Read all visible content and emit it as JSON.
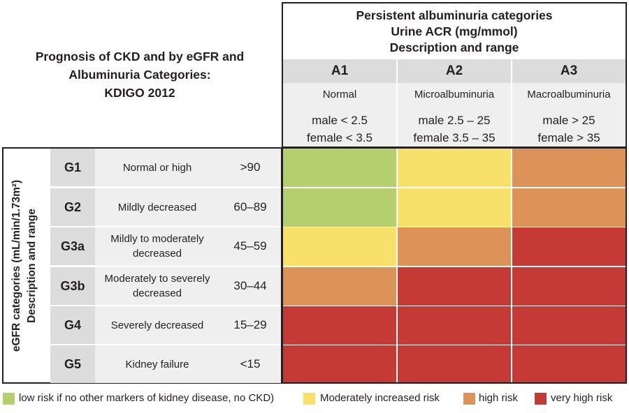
{
  "title": {
    "line1": "Prognosis of CKD and by eGFR and",
    "line2": "Albuminuria Categories:",
    "line3": "KDIGO 2012"
  },
  "albuminuria": {
    "title_line1": "Persistent albuminuria categories",
    "title_line2": "Urine ACR (mg/mmol)",
    "title_line3": "Description and range",
    "columns": [
      {
        "code": "A1",
        "desc": "Normal",
        "range1": "male < 2.5",
        "range2": "female < 3.5"
      },
      {
        "code": "A2",
        "desc": "Microalbuminuria",
        "range1": "male 2.5 – 25",
        "range2": "female 3.5 – 35"
      },
      {
        "code": "A3",
        "desc": "Macroalbuminuria",
        "range1": "male > 25",
        "range2": "female > 35"
      }
    ]
  },
  "egfr": {
    "axis_line1": "eGFR categories (mL/min/1.73m²)",
    "axis_line2": "Description and range",
    "rows": [
      {
        "code": "G1",
        "desc": "Normal or high",
        "range": ">90"
      },
      {
        "code": "G2",
        "desc": "Mildly decreased",
        "range": "60–89"
      },
      {
        "code": "G3a",
        "desc": "Mildly to moderately decreased",
        "range": "45–59"
      },
      {
        "code": "G3b",
        "desc": "Moderately to severely decreased",
        "range": "30–44"
      },
      {
        "code": "G4",
        "desc": "Severely decreased",
        "range": "15–29"
      },
      {
        "code": "G5",
        "desc": "Kidney failure",
        "range": "<15"
      }
    ]
  },
  "risk_colors": {
    "low": "#b5cf6e",
    "moderate": "#f7e16b",
    "high": "#dd9357",
    "very_high": "#c53a34"
  },
  "risk_grid": [
    [
      "low",
      "moderate",
      "high"
    ],
    [
      "low",
      "moderate",
      "high"
    ],
    [
      "moderate",
      "high",
      "very_high"
    ],
    [
      "high",
      "very_high",
      "very_high"
    ],
    [
      "very_high",
      "very_high",
      "very_high"
    ],
    [
      "very_high",
      "very_high",
      "very_high"
    ]
  ],
  "legend": {
    "low": "low risk if no other markers of kidney disease, no CKD)",
    "moderate": "Moderately increased risk",
    "high": "high risk",
    "very_high": "very high risk"
  }
}
